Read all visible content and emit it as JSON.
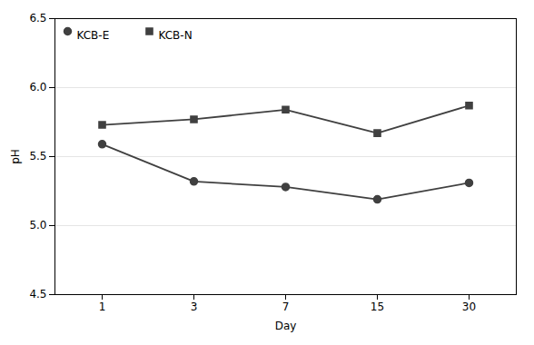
{
  "chart_data": {
    "type": "line",
    "categories": [
      "1",
      "3",
      "7",
      "15",
      "30"
    ],
    "series": [
      {
        "name": "KCB-E",
        "color": "#404040",
        "marker": "circle",
        "values": [
          5.59,
          5.32,
          5.28,
          5.19,
          5.31
        ]
      },
      {
        "name": "KCB-N",
        "color": "#404040",
        "marker": "square",
        "values": [
          5.73,
          5.77,
          5.84,
          5.67,
          5.87
        ]
      }
    ],
    "xlabel": "Day",
    "ylabel": "pH",
    "ylim": [
      4.5,
      6.5
    ],
    "yticks": [
      4.5,
      {
        "value": 5,
        "label": "5.0"
      },
      5.5,
      {
        "value": 6,
        "label": "6.0"
      },
      6.5
    ],
    "grid": true,
    "legend": "upper left"
  }
}
